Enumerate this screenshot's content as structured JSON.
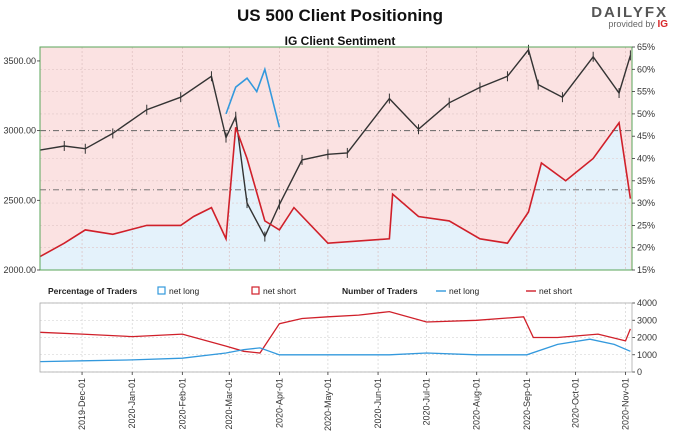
{
  "header": {
    "title": "US 500 Client Positioning",
    "brand": "DAILYFX",
    "brand_sub": "provided by",
    "brand_ig": "IG"
  },
  "chart_data": [
    {
      "type": "line",
      "title": "IG Client Sentiment",
      "left_axis": {
        "range": [
          2000,
          3600
        ],
        "ticks": [
          "3500.00",
          "3000.00",
          "2500.00",
          "2000.00"
        ]
      },
      "right_axis": {
        "range": [
          15,
          65
        ],
        "ticks": [
          "65%",
          "60%",
          "55%",
          "50%",
          "45%",
          "40%",
          "35%",
          "30%",
          "25%",
          "20%",
          "15%"
        ]
      },
      "reference_lines": [
        {
          "value": 3000,
          "axis": "left",
          "style": "dash-dot"
        },
        {
          "value": 2575,
          "axis": "left",
          "style": "dash-dot"
        }
      ],
      "grid": true,
      "series": [
        {
          "kind": "candlestick-price",
          "color": "#333333",
          "x": [
            "2019-11-05",
            "2019-11-20",
            "2019-12-03",
            "2019-12-20",
            "2020-01-10",
            "2020-01-31",
            "2020-02-19",
            "2020-02-28",
            "2020-03-05",
            "2020-03-12",
            "2020-03-23",
            "2020-04-01",
            "2020-04-15",
            "2020-05-01",
            "2020-05-13",
            "2020-06-08",
            "2020-06-26",
            "2020-07-15",
            "2020-08-03",
            "2020-08-20",
            "2020-09-02",
            "2020-09-08",
            "2020-09-23",
            "2020-10-12",
            "2020-10-28",
            "2020-11-04"
          ],
          "y": [
            2860,
            2890,
            2870,
            2980,
            3150,
            3240,
            3390,
            2950,
            3100,
            2480,
            2240,
            2470,
            2790,
            2830,
            2840,
            3230,
            3010,
            3200,
            3310,
            3390,
            3580,
            3330,
            3240,
            3530,
            3270,
            3540
          ]
        },
        {
          "kind": "net-short-percent",
          "color": "#d0202a",
          "x": [
            "2019-11-05",
            "2019-11-20",
            "2019-12-03",
            "2019-12-20",
            "2020-01-10",
            "2020-01-31",
            "2020-02-08",
            "2020-02-19",
            "2020-02-28",
            "2020-03-05",
            "2020-03-12",
            "2020-03-23",
            "2020-04-01",
            "2020-04-10",
            "2020-05-01",
            "2020-06-08",
            "2020-06-10",
            "2020-06-26",
            "2020-07-15",
            "2020-08-03",
            "2020-08-20",
            "2020-09-02",
            "2020-09-10",
            "2020-09-25",
            "2020-10-12",
            "2020-10-28",
            "2020-11-04"
          ],
          "y": [
            18,
            21,
            24,
            23,
            25,
            25,
            27,
            29,
            22,
            47,
            40,
            26,
            24,
            29,
            21,
            22,
            32,
            27,
            26,
            22,
            21,
            28,
            39,
            35,
            40,
            48,
            31
          ]
        },
        {
          "kind": "net-long-percent",
          "color": "#3399dd",
          "x": [
            "2020-02-28",
            "2020-03-05",
            "2020-03-12",
            "2020-03-18",
            "2020-03-23",
            "2020-04-01"
          ],
          "y": [
            50,
            56,
            58,
            55,
            60,
            47
          ]
        }
      ]
    },
    {
      "type": "line",
      "title": "",
      "legend": {
        "percentage_label": "Percentage of Traders",
        "percentage_items": [
          {
            "label": "net long",
            "color": "#3399dd",
            "marker": "square"
          },
          {
            "label": "net short",
            "color": "#d0202a",
            "marker": "square"
          }
        ],
        "number_label": "Number of Traders",
        "number_items": [
          {
            "label": "net long",
            "color": "#3399dd",
            "marker": "line"
          },
          {
            "label": "net short",
            "color": "#d0202a",
            "marker": "line"
          }
        ]
      },
      "y_axis": {
        "range": [
          0,
          4000
        ],
        "ticks": [
          "4000",
          "3000",
          "2000",
          "1000",
          "0"
        ]
      },
      "x_axis": {
        "ticks": [
          "2019-Dec-01",
          "2020-Jan-01",
          "2020-Feb-01",
          "2020-Mar-01",
          "2020-Apr-01",
          "2020-May-01",
          "2020-Jun-01",
          "2020-Jul-01",
          "2020-Aug-01",
          "2020-Sep-01",
          "2020-Oct-01",
          "2020-Nov-01"
        ]
      },
      "series": [
        {
          "name": "net short",
          "color": "#d0202a",
          "x": [
            "2019-11-05",
            "2019-12-01",
            "2020-01-01",
            "2020-02-01",
            "2020-02-28",
            "2020-03-10",
            "2020-03-20",
            "2020-04-01",
            "2020-04-15",
            "2020-05-01",
            "2020-05-20",
            "2020-06-08",
            "2020-07-01",
            "2020-08-01",
            "2020-08-30",
            "2020-09-05",
            "2020-09-20",
            "2020-10-15",
            "2020-11-01",
            "2020-11-04"
          ],
          "y": [
            2300,
            2200,
            2050,
            2200,
            1500,
            1200,
            1100,
            2800,
            3100,
            3200,
            3300,
            3500,
            2900,
            3000,
            3200,
            2000,
            2000,
            2200,
            1800,
            2500
          ]
        },
        {
          "name": "net long",
          "color": "#3399dd",
          "x": [
            "2019-11-05",
            "2019-12-01",
            "2020-01-01",
            "2020-02-01",
            "2020-02-28",
            "2020-03-10",
            "2020-03-20",
            "2020-04-01",
            "2020-05-01",
            "2020-06-08",
            "2020-07-01",
            "2020-08-01",
            "2020-09-01",
            "2020-09-20",
            "2020-10-10",
            "2020-10-25",
            "2020-11-04"
          ],
          "y": [
            600,
            650,
            700,
            800,
            1100,
            1300,
            1400,
            1000,
            1000,
            1000,
            1100,
            1000,
            1000,
            1600,
            1900,
            1600,
            1200
          ]
        }
      ]
    }
  ]
}
